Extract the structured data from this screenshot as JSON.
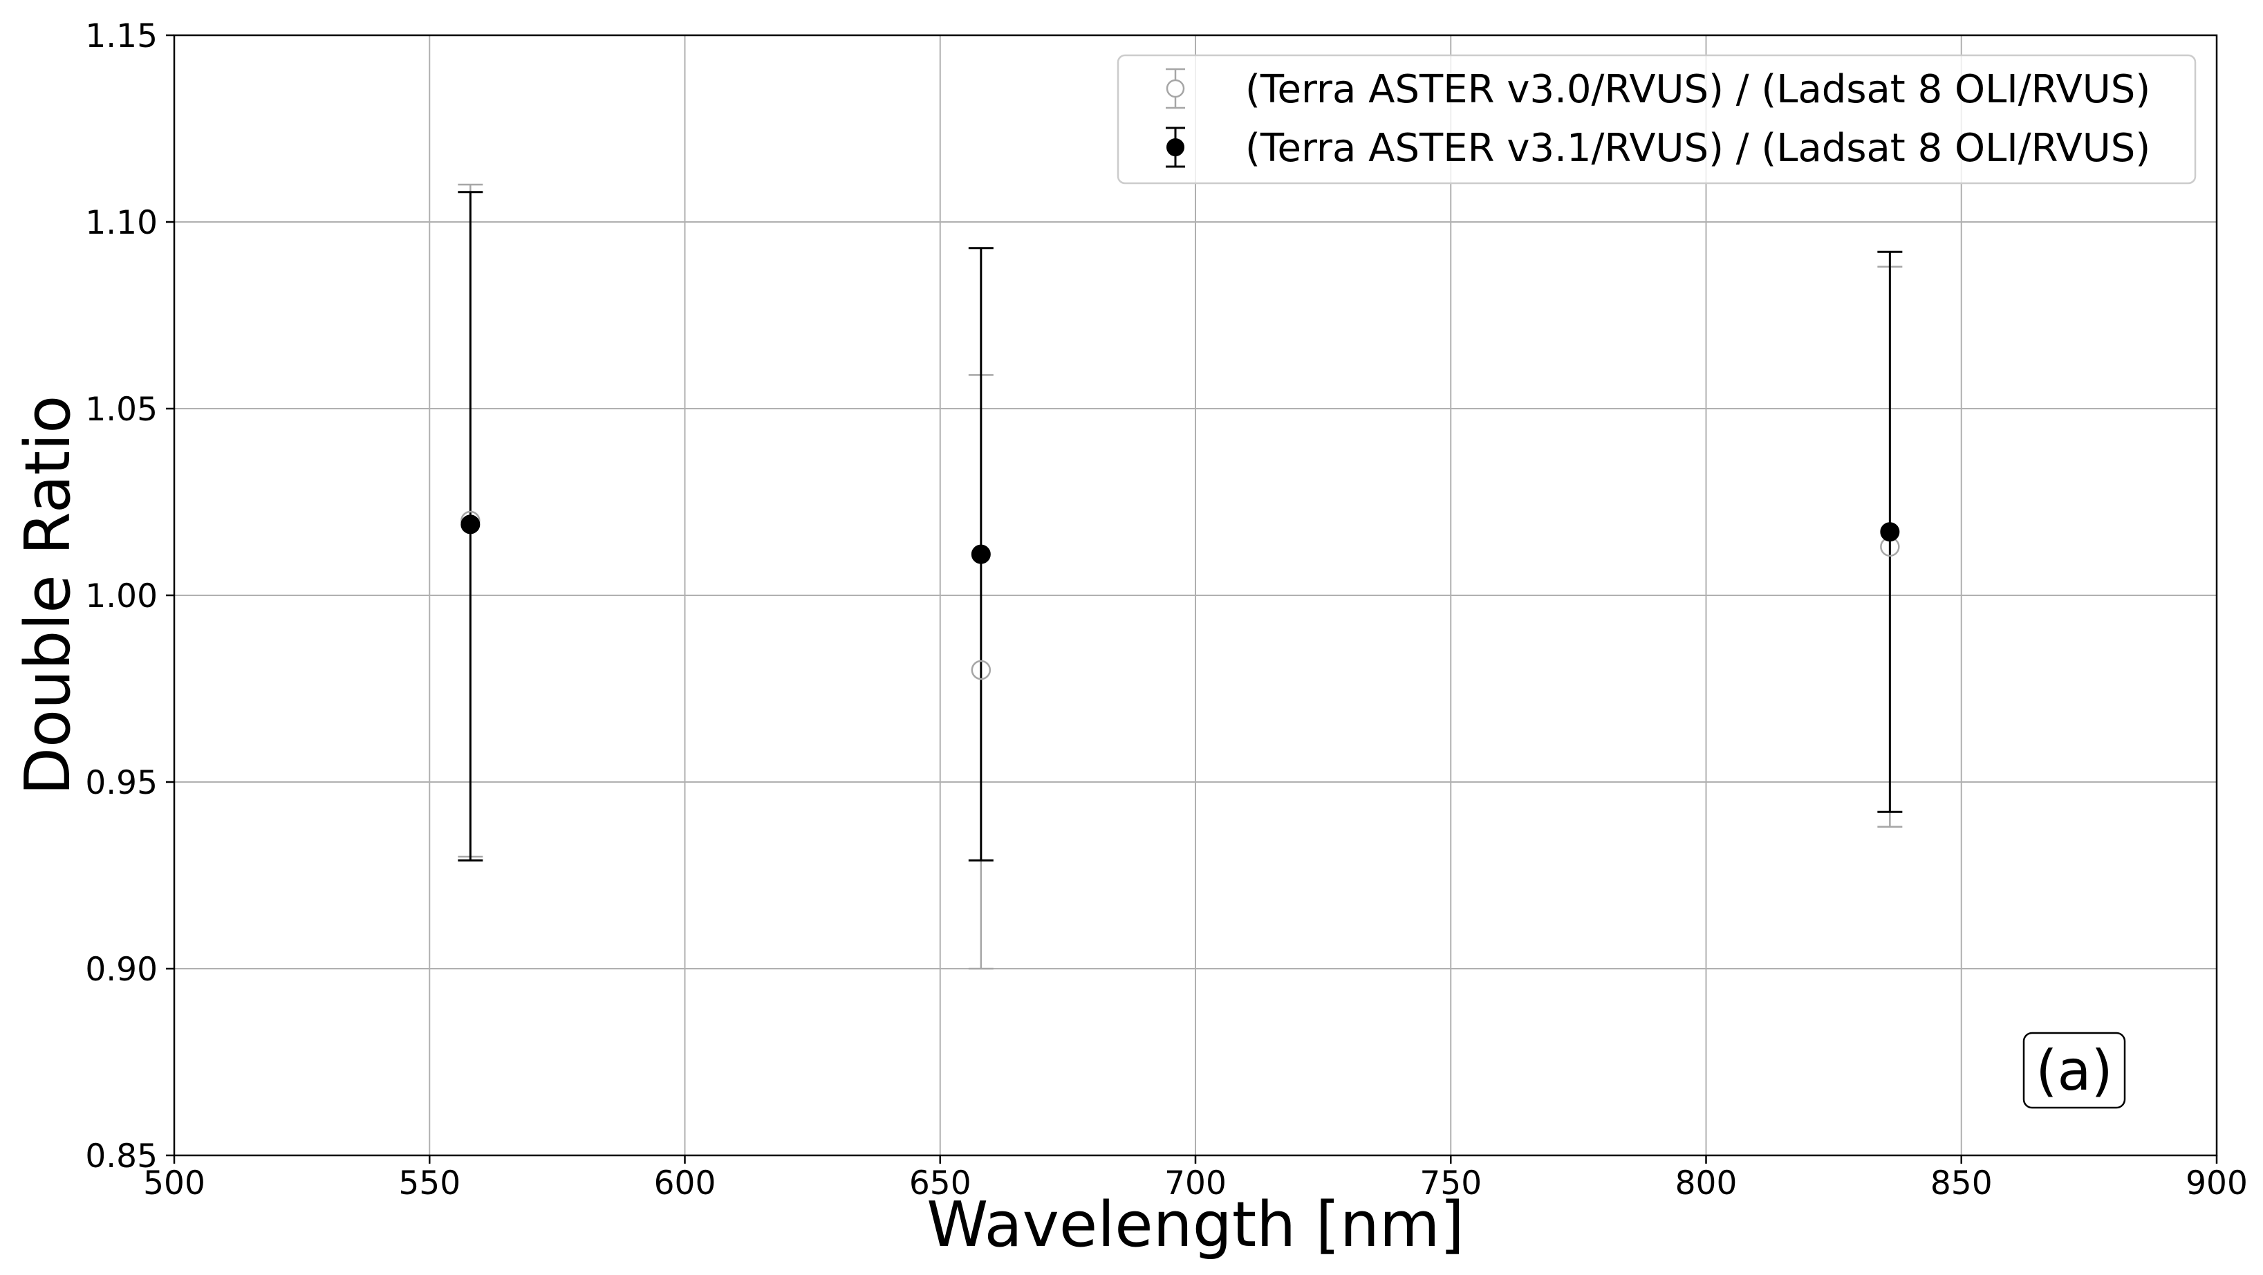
{
  "chart_data": {
    "type": "scatter",
    "xlabel": "Wavelength [nm]",
    "ylabel": "Double Ratio",
    "xlim": [
      500,
      900
    ],
    "ylim": [
      0.85,
      1.15
    ],
    "xticks": [
      500,
      550,
      600,
      650,
      700,
      750,
      800,
      850,
      900
    ],
    "yticks": [
      0.85,
      0.9,
      0.95,
      1.0,
      1.05,
      1.1,
      1.15
    ],
    "xtick_labels": [
      "500",
      "550",
      "600",
      "650",
      "700",
      "750",
      "800",
      "850",
      "900"
    ],
    "ytick_labels": [
      "0.85",
      "0.90",
      "0.95",
      "1.00",
      "1.05",
      "1.10",
      "1.15"
    ],
    "grid": true,
    "legend_position": "top-right",
    "annotation": "(a)",
    "series": [
      {
        "name": "(Terra ASTER v3.0/RVUS) / (Ladsat 8 OLI/RVUS)",
        "marker": "open-circle",
        "color": "#a6a6a6",
        "points": [
          {
            "x": 558,
            "y": 1.02,
            "ylow": 0.93,
            "yhigh": 1.11
          },
          {
            "x": 658,
            "y": 0.98,
            "ylow": 0.9,
            "yhigh": 1.059
          },
          {
            "x": 836,
            "y": 1.013,
            "ylow": 0.938,
            "yhigh": 1.088
          }
        ]
      },
      {
        "name": "(Terra ASTER v3.1/RVUS) / (Ladsat 8 OLI/RVUS)",
        "marker": "filled-circle",
        "color": "#000000",
        "points": [
          {
            "x": 558,
            "y": 1.019,
            "ylow": 0.929,
            "yhigh": 1.108
          },
          {
            "x": 658,
            "y": 1.011,
            "ylow": 0.929,
            "yhigh": 1.093
          },
          {
            "x": 836,
            "y": 1.017,
            "ylow": 0.942,
            "yhigh": 1.092
          }
        ]
      }
    ]
  }
}
